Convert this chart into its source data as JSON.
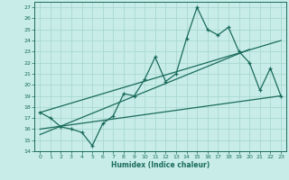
{
  "xlabel": "Humidex (Indice chaleur)",
  "bg_color": "#c8ede8",
  "grid_color": "#a8d8d0",
  "line_color": "#1a6b5a",
  "xlim": [
    -0.5,
    23.5
  ],
  "ylim": [
    14,
    27.5
  ],
  "xticks": [
    0,
    1,
    2,
    3,
    4,
    5,
    6,
    7,
    8,
    9,
    10,
    11,
    12,
    13,
    14,
    15,
    16,
    17,
    18,
    19,
    20,
    21,
    22,
    23
  ],
  "yticks": [
    14,
    15,
    16,
    17,
    18,
    19,
    20,
    21,
    22,
    23,
    24,
    25,
    26,
    27
  ],
  "data_x": [
    0,
    1,
    2,
    3,
    4,
    5,
    6,
    7,
    8,
    9,
    10,
    11,
    12,
    13,
    14,
    15,
    16,
    17,
    18,
    19,
    20,
    21,
    22,
    23
  ],
  "data_y": [
    17.5,
    17.0,
    16.2,
    16.0,
    15.7,
    14.5,
    16.5,
    17.2,
    19.2,
    19.0,
    20.5,
    22.5,
    20.3,
    21.0,
    24.2,
    27.0,
    25.0,
    24.5,
    25.2,
    23.0,
    22.0,
    19.5,
    21.5,
    19.0
  ],
  "trend1_x": [
    0,
    23
  ],
  "trend1_y": [
    17.5,
    24.0
  ],
  "trend2_x": [
    0,
    20
  ],
  "trend2_y": [
    15.5,
    23.2
  ],
  "trend3_x": [
    0,
    23
  ],
  "trend3_y": [
    16.0,
    19.0
  ]
}
